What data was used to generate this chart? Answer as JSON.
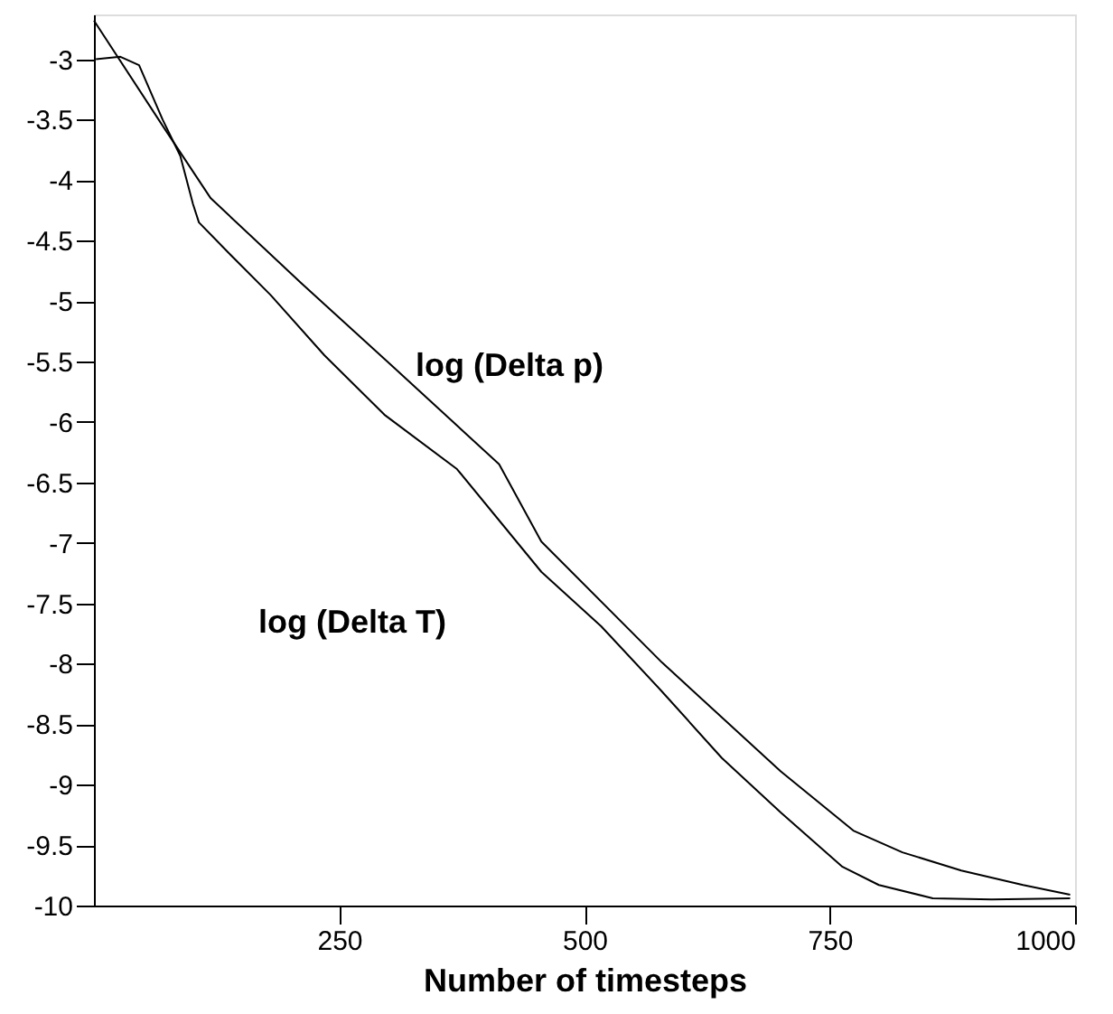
{
  "chart_data": {
    "type": "line",
    "xlabel": "Number of timesteps",
    "xlim": [
      0,
      1000
    ],
    "xticks": [
      250,
      500,
      750,
      1000
    ],
    "ylim": [
      -10,
      -2.63
    ],
    "yticks": [
      -3,
      -3.5,
      -4,
      -4.5,
      -5,
      -5.5,
      -6,
      -6.5,
      -7,
      -7.5,
      -8,
      -8.5,
      -9,
      -9.5,
      -10
    ],
    "grid": false,
    "legend": false,
    "marker": "none",
    "line_style": "solid",
    "series": [
      {
        "color": "#000000",
        "x": [
          0,
          70,
          119,
          211,
          303,
          413,
          456,
          579,
          700,
          774,
          824,
          884,
          947,
          995
        ],
        "values": [
          -2.68,
          -3.55,
          -4.15,
          -4.85,
          -5.53,
          -6.35,
          -6.99,
          -7.99,
          -8.89,
          -9.38,
          -9.56,
          -9.71,
          -9.83,
          -9.91
        ]
      },
      {
        "color": "#000000",
        "x": [
          2,
          27,
          46,
          70,
          88,
          101,
          107,
          137,
          180,
          235,
          296,
          370,
          456,
          517,
          579,
          640,
          700,
          763,
          800,
          855,
          915,
          995
        ],
        "values": [
          -3.0,
          -2.98,
          -3.05,
          -3.5,
          -3.8,
          -4.2,
          -4.35,
          -4.6,
          -4.95,
          -5.45,
          -5.94,
          -6.39,
          -7.24,
          -7.69,
          -8.23,
          -8.78,
          -9.23,
          -9.68,
          -9.83,
          -9.94,
          -9.95,
          -9.94
        ]
      }
    ],
    "annotations": [
      "log (Delta p)",
      "log (Delta T)"
    ]
  }
}
